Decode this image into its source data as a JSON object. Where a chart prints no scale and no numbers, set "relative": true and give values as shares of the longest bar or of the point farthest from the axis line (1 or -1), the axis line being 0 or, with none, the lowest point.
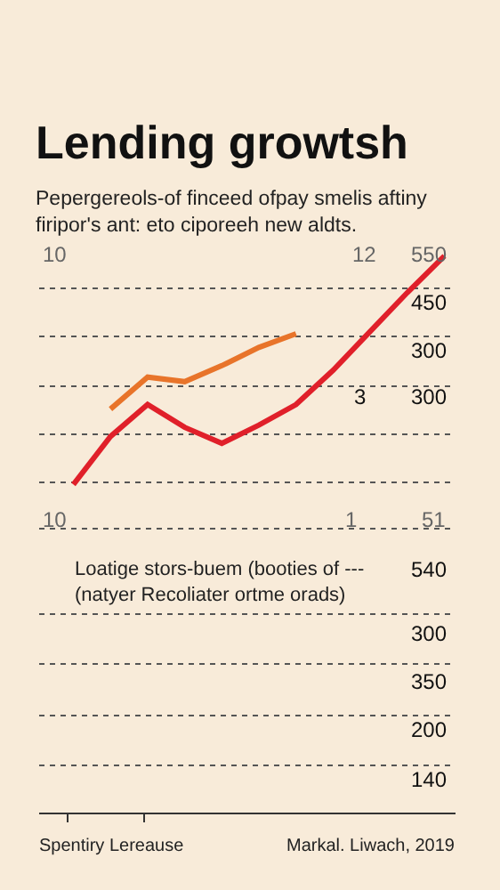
{
  "chart_data": {
    "type": "line",
    "title": "Lending growtsh",
    "subtitle": "Pepergereols-of finceed ofpay smelis aftiny firipor's ant: eto ciporeeh new aldts.",
    "categories": [
      null,
      null,
      null,
      null,
      null,
      null,
      null,
      null,
      null,
      null,
      null
    ],
    "relative": true,
    "grid": "y",
    "series": [
      {
        "color": "#e0202a",
        "values": [
          0,
          0.21,
          0.35,
          0.25,
          0.18,
          0.26,
          0.35,
          0.5,
          0.67,
          0.84,
          1.0
        ]
      },
      {
        "color": "#e8742a",
        "values": [
          null,
          0.33,
          0.47,
          0.45,
          0.52,
          0.6,
          0.66,
          null,
          null,
          null,
          null
        ]
      }
    ],
    "annotations": [
      "10",
      "12",
      "550",
      "450",
      "300",
      "3",
      "300",
      "10",
      "1",
      "51",
      "Loatige stors-buem (booties of ---\n(natyer Recoliater ortme orads)",
      "540",
      "300",
      "350",
      "200",
      "140",
      "Spentiry Lereause",
      "Markal. Liwach, 2019"
    ]
  }
}
